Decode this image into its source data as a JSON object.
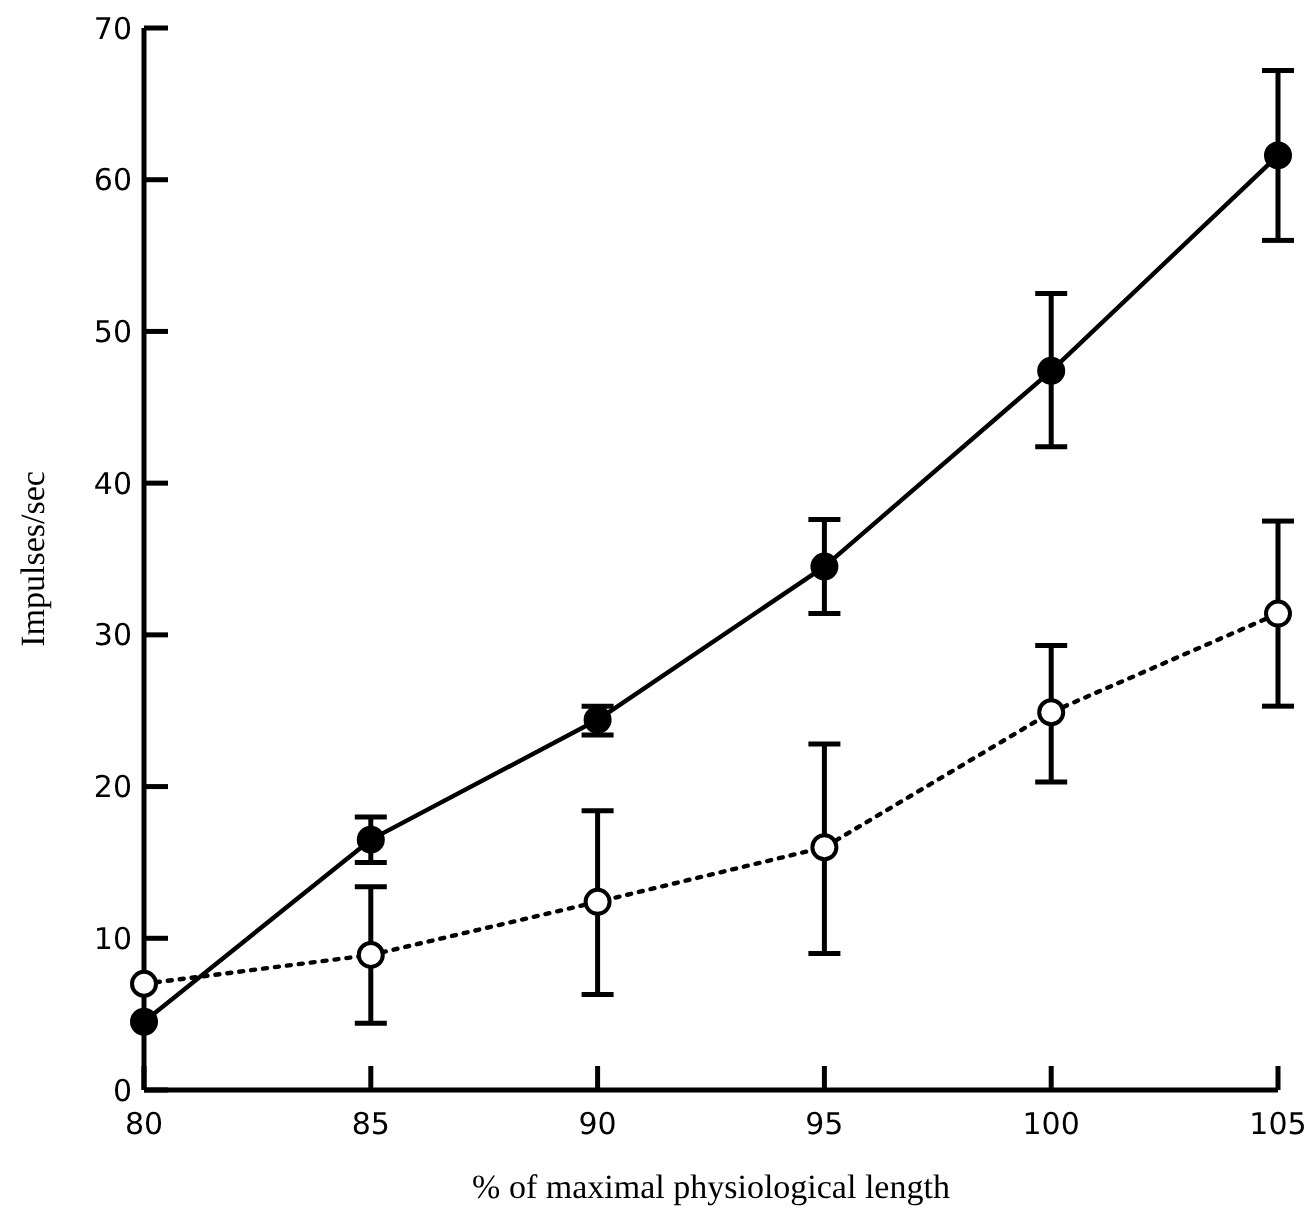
{
  "chart_data": {
    "type": "line",
    "xlabel": "% of maximal physiological length",
    "ylabel": "Impulses/sec",
    "x": [
      80,
      85,
      90,
      95,
      100,
      105
    ],
    "xlim": [
      80,
      105
    ],
    "xticks": [
      80,
      85,
      90,
      95,
      100,
      105
    ],
    "ylim": [
      0,
      70
    ],
    "yticks": [
      0,
      10,
      20,
      30,
      40,
      50,
      60,
      70
    ],
    "grid": false,
    "series": [
      {
        "color": "#000000",
        "marker": "circle",
        "line_style": "solid",
        "values": [
          4.5,
          16.5,
          24.4,
          34.5,
          47.4,
          61.6
        ],
        "errors": [
          null,
          [
            15.0,
            18.0
          ],
          [
            23.4,
            25.3
          ],
          [
            31.4,
            37.6
          ],
          [
            42.4,
            52.5
          ],
          [
            56.0,
            67.2
          ]
        ]
      },
      {
        "color": "#000000",
        "marker": "circle",
        "line_style": "dotted",
        "colors": [
          "#ffffff",
          "#ffffff",
          "#ffffff",
          "#ffffff",
          "#ffffff",
          "#ffffff"
        ],
        "values": [
          7.0,
          8.9,
          12.4,
          16.0,
          24.9,
          31.4
        ],
        "errors": [
          null,
          [
            4.4,
            13.4
          ],
          [
            6.3,
            18.4
          ],
          [
            9.0,
            22.8
          ],
          [
            20.3,
            29.3
          ],
          [
            25.3,
            37.5
          ]
        ]
      }
    ]
  }
}
